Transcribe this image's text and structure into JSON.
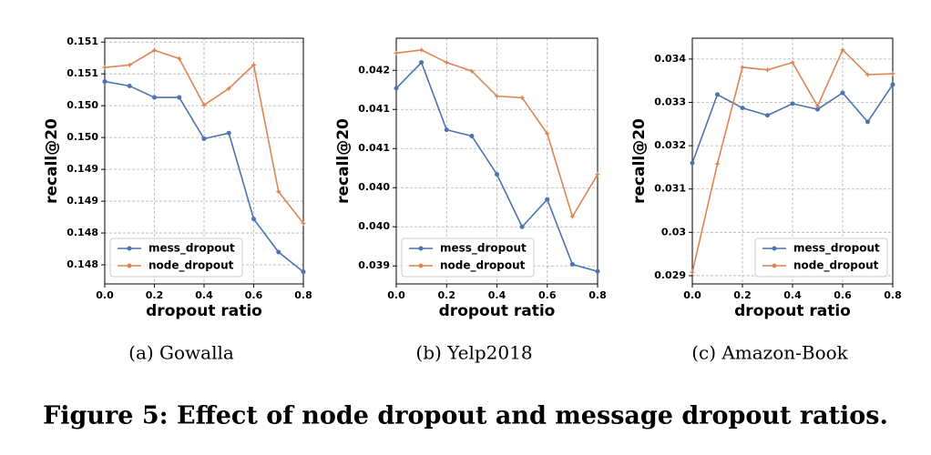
{
  "chart_data": [
    {
      "type": "line",
      "caption": "(a)  Gowalla",
      "xlabel": "dropout ratio",
      "ylabel": "recall@20",
      "x": [
        0,
        0.1,
        0.2,
        0.3,
        0.4,
        0.5,
        0.6,
        0.7,
        0.8
      ],
      "xlim": [
        0,
        0.8
      ],
      "xticks": [
        {
          "value": 0,
          "label": "0.0"
        },
        0.2,
        0.4,
        0.6,
        0.8
      ],
      "ylim": [
        0.1472,
        0.15106
      ],
      "yticks": [
        {
          "value": 0.151,
          "label": "0.151"
        },
        {
          "value": 0.1505,
          "label": "0.151"
        },
        {
          "value": 0.15,
          "label": "0.150"
        },
        {
          "value": 0.1495,
          "label": "0.150"
        },
        {
          "value": 0.149,
          "label": "0.149"
        },
        {
          "value": 0.1485,
          "label": "0.149"
        },
        {
          "value": 0.148,
          "label": "0.148"
        },
        {
          "value": 0.1475,
          "label": "0.148"
        }
      ],
      "grid": true,
      "legend": "lower left",
      "series": [
        {
          "name": "mess_dropout",
          "color": "#4c72b0",
          "values": [
            0.15038,
            0.15031,
            0.15013,
            0.15013,
            0.14948,
            0.14957,
            0.14822,
            0.1477,
            0.14739
          ]
        },
        {
          "name": "node_dropout",
          "color": "#dd8452",
          "values": [
            0.1506,
            0.15064,
            0.15087,
            0.15074,
            0.15001,
            0.15027,
            0.15064,
            0.14865,
            0.14815
          ]
        }
      ]
    },
    {
      "type": "line",
      "caption": "(b)  Yelp2018",
      "xlabel": "dropout ratio",
      "ylabel": "recall@20",
      "x": [
        0,
        0.1,
        0.2,
        0.3,
        0.4,
        0.5,
        0.6,
        0.7,
        0.8
      ],
      "xlim": [
        0,
        0.8
      ],
      "xticks": [
        {
          "value": 0,
          "label": "0.0"
        },
        0.2,
        0.4,
        0.6,
        0.8
      ],
      "ylim": [
        0.03927,
        0.04241
      ],
      "yticks": [
        {
          "value": 0.042,
          "label": "0.042"
        },
        {
          "value": 0.0415,
          "label": "0.041"
        },
        {
          "value": 0.041,
          "label": "0.041"
        },
        {
          "value": 0.0405,
          "label": "0.040"
        },
        {
          "value": 0.04,
          "label": "0.040"
        },
        {
          "value": 0.0395,
          "label": "0.039"
        }
      ],
      "grid": true,
      "legend": "lower left",
      "series": [
        {
          "name": "mess_dropout",
          "color": "#4c72b0",
          "values": [
            0.04177,
            0.0421,
            0.04124,
            0.04116,
            0.04067,
            0.04,
            0.04035,
            0.03952,
            0.03943
          ]
        },
        {
          "name": "node_dropout",
          "color": "#dd8452",
          "values": [
            0.04222,
            0.04226,
            0.0421,
            0.04199,
            0.04167,
            0.04165,
            0.04119,
            0.04013,
            0.04067
          ]
        }
      ]
    },
    {
      "type": "line",
      "caption": "(c)  Amazon-Book",
      "xlabel": "dropout ratio",
      "ylabel": "recall@20",
      "x": [
        0,
        0.1,
        0.2,
        0.3,
        0.4,
        0.5,
        0.6,
        0.7,
        0.8
      ],
      "xlim": [
        0,
        0.8
      ],
      "xticks": [
        {
          "value": 0,
          "label": "0.0"
        },
        0.2,
        0.4,
        0.6,
        0.8
      ],
      "ylim": [
        0.02881,
        0.03448
      ],
      "yticks": [
        0.034,
        0.033,
        0.032,
        0.031,
        0.03,
        0.029
      ],
      "grid": true,
      "legend": "lower right",
      "series": [
        {
          "name": "mess_dropout",
          "color": "#4c72b0",
          "values": [
            0.0316,
            0.03318,
            0.03287,
            0.0327,
            0.03297,
            0.03284,
            0.03322,
            0.03255,
            0.03341
          ]
        },
        {
          "name": "node_dropout",
          "color": "#dd8452",
          "values": [
            0.02908,
            0.03158,
            0.03381,
            0.03375,
            0.03392,
            0.03291,
            0.03421,
            0.03364,
            0.03366
          ]
        }
      ]
    }
  ],
  "figure_caption": "Figure 5: Effect of node dropout and message dropout ratios."
}
